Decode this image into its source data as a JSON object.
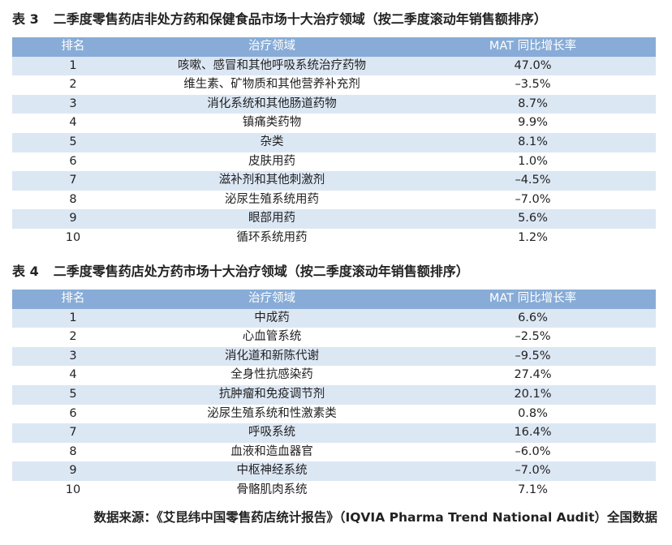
{
  "tables": [
    {
      "number": "表 3",
      "title": "二季度零售药店非处方药和保健食品市场十大治疗领域（按二季度滚动年销售额排序）",
      "header": [
        "排名",
        "治疗领域",
        "MAT 同比增长率"
      ],
      "rows": [
        [
          "1",
          "咳嗽、感冒和其他呼吸系统治疗药物",
          "47.0%"
        ],
        [
          "2",
          "维生素、矿物质和其他营养补充剂",
          "–3.5%"
        ],
        [
          "3",
          "消化系统和其他肠道药物",
          "8.7%"
        ],
        [
          "4",
          "镇痛类药物",
          "9.9%"
        ],
        [
          "5",
          "杂类",
          "8.1%"
        ],
        [
          "6",
          "皮肤用药",
          "1.0%"
        ],
        [
          "7",
          "滋补剂和其他刺激剂",
          "–4.5%"
        ],
        [
          "8",
          "泌尿生殖系统用药",
          "–7.0%"
        ],
        [
          "9",
          "眼部用药",
          "5.6%"
        ],
        [
          "10",
          "循环系统用药",
          "1.2%"
        ]
      ]
    },
    {
      "number": "表 4",
      "title": "二季度零售药店处方药市场十大治疗领域（按二季度滚动年销售额排序）",
      "header": [
        "排名",
        "治疗领域",
        "MAT 同比增长率"
      ],
      "rows": [
        [
          "1",
          "中成药",
          "6.6%"
        ],
        [
          "2",
          "心血管系统",
          "–2.5%"
        ],
        [
          "3",
          "消化道和新陈代谢",
          "–9.5%"
        ],
        [
          "4",
          "全身性抗感染药",
          "27.4%"
        ],
        [
          "5",
          "抗肿瘤和免疫调节剂",
          "20.1%"
        ],
        [
          "6",
          "泌尿生殖系统和性激素类",
          "0.8%"
        ],
        [
          "7",
          "呼吸系统",
          "16.4%"
        ],
        [
          "8",
          "血液和造血器官",
          "–6.0%"
        ],
        [
          "9",
          "中枢神经系统",
          "–7.0%"
        ],
        [
          "10",
          "骨骼肌肉系统",
          "7.1%"
        ]
      ]
    }
  ],
  "source": "数据来源：《艾昆纬中国零售药店统计报告》（IQVIA Pharma Trend National Audit）全国数据"
}
